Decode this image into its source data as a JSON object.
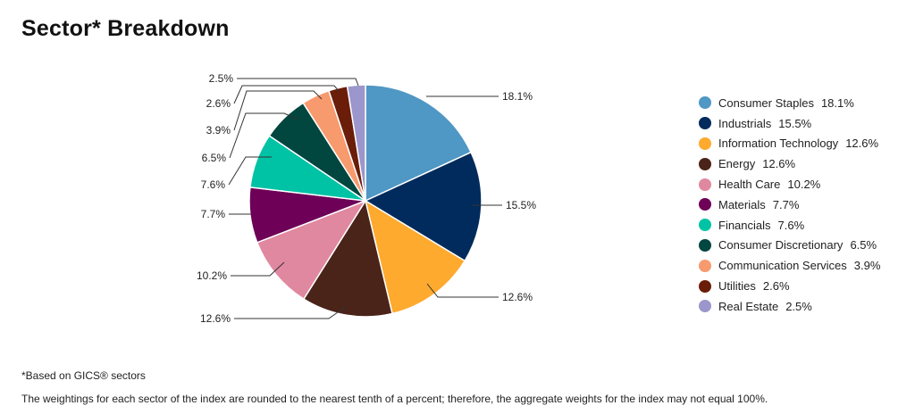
{
  "title": "Sector* Breakdown",
  "footnote": "*Based on GICS® sectors",
  "disclaimer": "The weightings for each sector of the index are rounded to the nearest tenth of a percent; therefore, the aggregate weights for the index may not equal 100%.",
  "chart_data": {
    "type": "pie",
    "title": "Sector* Breakdown",
    "legend_position": "right",
    "slices": [
      {
        "label": "Consumer Staples",
        "value": 18.1,
        "display": "18.1%",
        "color": "#4F97C4"
      },
      {
        "label": "Industrials",
        "value": 15.5,
        "display": "15.5%",
        "color": "#002B5C"
      },
      {
        "label": "Information Technology",
        "value": 12.6,
        "display": "12.6%",
        "color": "#FDAA2F"
      },
      {
        "label": "Energy",
        "value": 12.6,
        "display": "12.6%",
        "color": "#4A2319"
      },
      {
        "label": "Health Care",
        "value": 10.2,
        "display": "10.2%",
        "color": "#E0889F"
      },
      {
        "label": "Materials",
        "value": 7.7,
        "display": "7.7%",
        "color": "#6E0057"
      },
      {
        "label": "Financials",
        "value": 7.6,
        "display": "7.6%",
        "color": "#00C3A5"
      },
      {
        "label": "Consumer Discretionary",
        "value": 6.5,
        "display": "6.5%",
        "color": "#024640"
      },
      {
        "label": "Communication Services",
        "value": 3.9,
        "display": "3.9%",
        "color": "#F79A6E"
      },
      {
        "label": "Utilities",
        "value": 2.6,
        "display": "2.6%",
        "color": "#6A1D08"
      },
      {
        "label": "Real Estate",
        "value": 2.5,
        "display": "2.5%",
        "color": "#9B96CB"
      }
    ]
  }
}
